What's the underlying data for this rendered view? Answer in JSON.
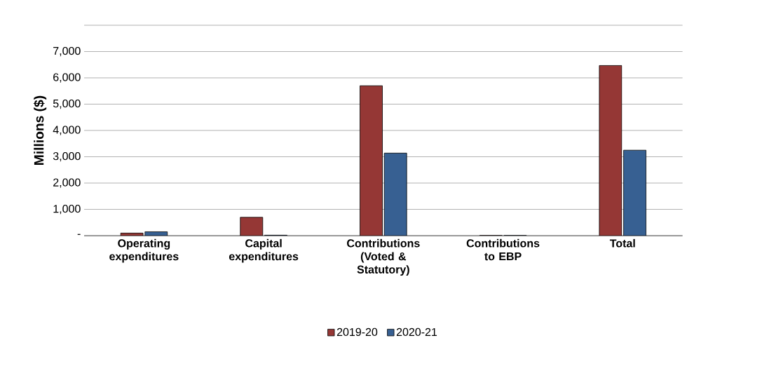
{
  "chart_data": {
    "type": "bar",
    "ylabel": "Millions ($)",
    "categories": [
      "Operating expenditures",
      "Capital expenditures",
      "Contributions (Voted & Statutory)",
      "Contributions to EBP",
      "Total"
    ],
    "series": [
      {
        "name": "2019-20",
        "color": "#953735",
        "values": [
          100,
          700,
          5700,
          10,
          6470
        ]
      },
      {
        "name": "2020-21",
        "color": "#376092",
        "values": [
          150,
          20,
          3140,
          10,
          3250
        ]
      }
    ],
    "ylim": [
      0,
      8000
    ],
    "yticks": [
      {
        "value": 0,
        "label": "-"
      },
      {
        "value": 1000,
        "label": "1,000"
      },
      {
        "value": 2000,
        "label": "2,000"
      },
      {
        "value": 3000,
        "label": "3,000"
      },
      {
        "value": 4000,
        "label": "4,000"
      },
      {
        "value": 5000,
        "label": "5,000"
      },
      {
        "value": 6000,
        "label": "6,000"
      },
      {
        "value": 7000,
        "label": "7,000"
      },
      {
        "value": 8000,
        "label": null
      }
    ],
    "grid": "y",
    "legend": "bottom"
  }
}
